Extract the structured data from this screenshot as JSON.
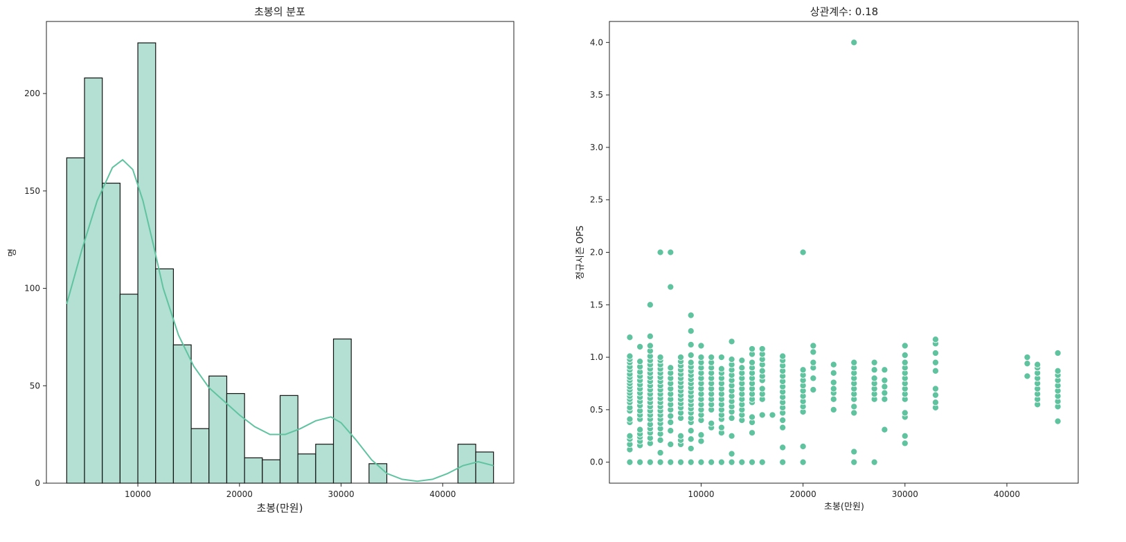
{
  "colors": {
    "bar_fill": "#b3e0d2",
    "bar_edge": "#111111",
    "accent": "#5fc3a0",
    "axis": "#222222"
  },
  "chart_data": [
    {
      "type": "bar",
      "title": "초봉의 분포",
      "xlabel": "초봉(만원)",
      "ylabel": "명",
      "xlim": [
        1000,
        47000
      ],
      "ylim": [
        0,
        237
      ],
      "xticks": [
        10000,
        20000,
        30000,
        40000
      ],
      "yticks": [
        0,
        50,
        100,
        150,
        200
      ],
      "bin_edges": [
        3000,
        4750,
        6500,
        8250,
        10000,
        11750,
        13500,
        15250,
        17000,
        18750,
        20500,
        22250,
        24000,
        25750,
        27500,
        29250,
        31000,
        32750,
        34500,
        36250,
        38000,
        39750,
        41500,
        43250,
        45000
      ],
      "values": [
        167,
        208,
        154,
        97,
        226,
        110,
        71,
        28,
        55,
        46,
        13,
        12,
        45,
        15,
        20,
        74,
        0,
        10,
        0,
        0,
        0,
        0,
        20,
        16
      ],
      "kde": {
        "x": [
          3000,
          4500,
          6000,
          7500,
          8500,
          9500,
          10500,
          11500,
          12500,
          14000,
          15500,
          17000,
          18500,
          20000,
          21500,
          23000,
          24500,
          26000,
          27500,
          29000,
          30000,
          31500,
          33000,
          34500,
          36000,
          37500,
          39000,
          40500,
          42000,
          43500,
          45000
        ],
        "y": [
          92,
          120,
          145,
          162,
          166,
          161,
          145,
          123,
          100,
          76,
          60,
          49,
          42,
          35,
          29,
          25,
          25,
          28,
          32,
          34,
          31,
          22,
          12,
          5,
          2,
          1,
          2,
          5,
          9,
          11,
          9
        ]
      }
    },
    {
      "type": "scatter",
      "title": "상관계수: 0.18",
      "xlabel": "초봉(만원)",
      "ylabel": "정규시즌 OPS",
      "xlim": [
        1000,
        47000
      ],
      "ylim": [
        -0.2,
        4.2
      ],
      "xticks": [
        10000,
        20000,
        30000,
        40000
      ],
      "yticks": [
        0.0,
        0.5,
        1.0,
        1.5,
        2.0,
        2.5,
        3.0,
        3.5,
        4.0
      ],
      "ytick_labels": [
        "0.0",
        "0.5",
        "1.0",
        "1.5",
        "2.0",
        "2.5",
        "3.0",
        "3.5",
        "4.0"
      ],
      "groups": [
        {
          "x": 3000,
          "ys": [
            0,
            0.12,
            0.17,
            0.22,
            0.25,
            0.38,
            0.41,
            0.49,
            0.52,
            0.57,
            0.6,
            0.63,
            0.66,
            0.69,
            0.72,
            0.75,
            0.78,
            0.81,
            0.84,
            0.88,
            0.91,
            0.95,
            0.98,
            1.01,
            1.19
          ]
        },
        {
          "x": 4000,
          "ys": [
            0,
            0.16,
            0.2,
            0.24,
            0.27,
            0.31,
            0.41,
            0.45,
            0.49,
            0.54,
            0.58,
            0.62,
            0.66,
            0.7,
            0.74,
            0.78,
            0.82,
            0.86,
            0.91,
            0.96,
            1.1
          ]
        },
        {
          "x": 5000,
          "ys": [
            0,
            0.18,
            0.23,
            0.28,
            0.32,
            0.36,
            0.41,
            0.45,
            0.49,
            0.53,
            0.57,
            0.61,
            0.65,
            0.69,
            0.73,
            0.77,
            0.81,
            0.85,
            0.89,
            0.93,
            0.97,
            1.01,
            1.06,
            1.11,
            1.2,
            1.5
          ]
        },
        {
          "x": 6000,
          "ys": [
            0,
            0.09,
            0.21,
            0.27,
            0.32,
            0.37,
            0.41,
            0.45,
            0.49,
            0.53,
            0.57,
            0.61,
            0.65,
            0.69,
            0.73,
            0.77,
            0.81,
            0.85,
            0.89,
            0.93,
            0.97,
            1.0,
            2.0
          ]
        },
        {
          "x": 7000,
          "ys": [
            0,
            0.17,
            0.3,
            0.38,
            0.44,
            0.5,
            0.55,
            0.6,
            0.65,
            0.7,
            0.75,
            0.8,
            0.85,
            0.9,
            1.67,
            2.0
          ]
        },
        {
          "x": 8000,
          "ys": [
            0,
            0.17,
            0.21,
            0.25,
            0.42,
            0.47,
            0.52,
            0.56,
            0.6,
            0.64,
            0.68,
            0.72,
            0.76,
            0.8,
            0.84,
            0.88,
            0.92,
            0.96,
            1.0
          ]
        },
        {
          "x": 9000,
          "ys": [
            0,
            0.13,
            0.22,
            0.3,
            0.38,
            0.42,
            0.47,
            0.51,
            0.55,
            0.59,
            0.63,
            0.67,
            0.71,
            0.75,
            0.79,
            0.83,
            0.87,
            0.91,
            0.95,
            1.02,
            1.12,
            1.25,
            1.4
          ]
        },
        {
          "x": 10000,
          "ys": [
            0,
            0.2,
            0.26,
            0.4,
            0.45,
            0.5,
            0.55,
            0.6,
            0.65,
            0.7,
            0.75,
            0.8,
            0.85,
            0.9,
            0.95,
            1.0,
            1.11
          ]
        },
        {
          "x": 11000,
          "ys": [
            0,
            0.33,
            0.37,
            0.5,
            0.55,
            0.6,
            0.65,
            0.7,
            0.75,
            0.8,
            0.85,
            0.9,
            0.95,
            1.0
          ]
        },
        {
          "x": 12000,
          "ys": [
            0,
            0.28,
            0.33,
            0.41,
            0.45,
            0.5,
            0.55,
            0.6,
            0.65,
            0.7,
            0.75,
            0.8,
            0.85,
            0.89,
            1.0
          ]
        },
        {
          "x": 13000,
          "ys": [
            0,
            0.08,
            0.25,
            0.42,
            0.48,
            0.53,
            0.58,
            0.63,
            0.68,
            0.73,
            0.78,
            0.83,
            0.88,
            0.93,
            0.98,
            1.15
          ]
        },
        {
          "x": 14000,
          "ys": [
            0,
            0.4,
            0.45,
            0.5,
            0.55,
            0.6,
            0.65,
            0.7,
            0.75,
            0.8,
            0.85,
            0.9,
            0.97
          ]
        },
        {
          "x": 15000,
          "ys": [
            0,
            0.28,
            0.38,
            0.43,
            0.57,
            0.6,
            0.65,
            0.7,
            0.75,
            0.8,
            0.85,
            0.9,
            0.95,
            1.03,
            1.08
          ]
        },
        {
          "x": 16000,
          "ys": [
            0,
            0.45,
            0.6,
            0.65,
            0.7,
            0.78,
            0.82,
            0.87,
            0.93,
            0.98,
            1.03,
            1.08
          ]
        },
        {
          "x": 17000,
          "ys": [
            0.45
          ]
        },
        {
          "x": 18000,
          "ys": [
            0,
            0.14,
            0.33,
            0.4,
            0.47,
            0.52,
            0.57,
            0.62,
            0.67,
            0.72,
            0.77,
            0.82,
            0.87,
            0.92,
            0.97,
            1.01
          ]
        },
        {
          "x": 20000,
          "ys": [
            0,
            0.15,
            0.48,
            0.53,
            0.58,
            0.63,
            0.68,
            0.73,
            0.78,
            0.83,
            0.88,
            2.0
          ]
        },
        {
          "x": 21000,
          "ys": [
            0.69,
            0.8,
            0.9,
            0.95,
            1.05,
            1.11
          ]
        },
        {
          "x": 23000,
          "ys": [
            0.5,
            0.6,
            0.66,
            0.7,
            0.76,
            0.85,
            0.93
          ]
        },
        {
          "x": 25000,
          "ys": [
            0,
            0.1,
            0.47,
            0.53,
            0.6,
            0.65,
            0.7,
            0.75,
            0.8,
            0.85,
            0.9,
            0.95,
            4.0
          ]
        },
        {
          "x": 27000,
          "ys": [
            0,
            0.6,
            0.65,
            0.7,
            0.75,
            0.8,
            0.88,
            0.95
          ]
        },
        {
          "x": 28000,
          "ys": [
            0.31,
            0.6,
            0.66,
            0.72,
            0.78,
            0.88
          ]
        },
        {
          "x": 30000,
          "ys": [
            0.18,
            0.25,
            0.43,
            0.47,
            0.6,
            0.65,
            0.7,
            0.75,
            0.8,
            0.85,
            0.9,
            0.95,
            1.02,
            1.11
          ]
        },
        {
          "x": 33000,
          "ys": [
            0.52,
            0.57,
            0.64,
            0.7,
            0.87,
            0.95,
            1.04,
            1.13,
            1.17
          ]
        },
        {
          "x": 42000,
          "ys": [
            0.82,
            0.94,
            1.0
          ]
        },
        {
          "x": 43000,
          "ys": [
            0.55,
            0.6,
            0.65,
            0.7,
            0.75,
            0.8,
            0.85,
            0.9,
            0.93
          ]
        },
        {
          "x": 45000,
          "ys": [
            0.39,
            0.53,
            0.58,
            0.63,
            0.68,
            0.73,
            0.78,
            0.83,
            0.87,
            1.04
          ]
        }
      ]
    }
  ]
}
